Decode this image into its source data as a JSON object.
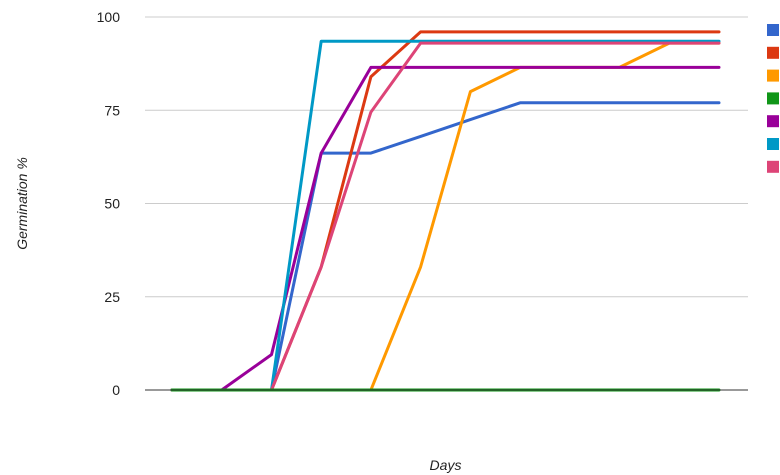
{
  "chart_data": {
    "type": "line",
    "title": "",
    "xlabel": "Days",
    "ylabel": "Germination %",
    "ylim": [
      0,
      100
    ],
    "y_ticks": [
      "0",
      "25",
      "50",
      "75",
      "100"
    ],
    "x_ticks_shown": false,
    "grid": true,
    "legend_position": "right",
    "x": [
      0,
      1,
      2,
      3,
      4,
      5,
      6,
      7,
      8,
      9,
      10,
      11
    ],
    "series": [
      {
        "color": "#3366cc",
        "values": [
          0,
          0,
          0,
          63.5,
          63.5,
          68,
          72.5,
          77,
          77,
          77,
          77,
          77
        ]
      },
      {
        "color": "#dc3912",
        "values": [
          0,
          0,
          0,
          33,
          84,
          96,
          96,
          96,
          96,
          96,
          96,
          96
        ]
      },
      {
        "color": "#ff9900",
        "values": [
          0,
          0,
          0,
          0,
          0,
          33,
          80,
          86.5,
          86.5,
          86.5,
          93,
          93
        ]
      },
      {
        "color": "#109618",
        "values": [
          0,
          0,
          0,
          0,
          0,
          0,
          0,
          0,
          0,
          0,
          0,
          0
        ]
      },
      {
        "color": "#990099",
        "values": [
          0,
          0,
          9.5,
          63.5,
          86.5,
          86.5,
          86.5,
          86.5,
          86.5,
          86.5,
          86.5,
          86.5
        ]
      },
      {
        "color": "#0099c6",
        "values": [
          0,
          0,
          0,
          93.5,
          93.5,
          93.5,
          93.5,
          93.5,
          93.5,
          93.5,
          93.5,
          93.5
        ]
      },
      {
        "color": "#dd4477",
        "values": [
          0,
          0,
          0,
          33,
          74.5,
          93,
          93,
          93,
          93,
          93,
          93,
          93
        ]
      }
    ]
  }
}
